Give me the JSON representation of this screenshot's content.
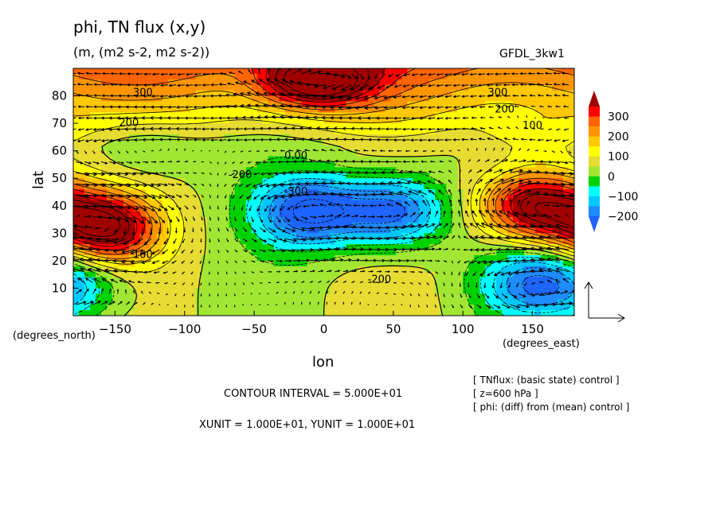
{
  "header": {
    "title": "phi, TN flux (x,y)",
    "subtitle": "(m, (m2 s-2, m2 s-2))",
    "model": "GFDL_3kw1"
  },
  "footer": {
    "contour_interval": "CONTOUR INTERVAL = 5.000E+01",
    "units": "XUNIT = 1.000E+01, YUNIT = 1.000E+01",
    "notes": [
      "[ TNflux: (basic state) control ]",
      "[ z=600 hPa ]",
      "[ phi: (diff) from (mean) control ]"
    ]
  },
  "chart_data": {
    "type": "heatmap",
    "title": "phi, TN flux (x,y)",
    "subtitle": "(m, (m2 s-2, m2 s-2))",
    "xlabel": "lon",
    "xunit_label": "(degrees_east)",
    "ylabel": "lat",
    "yunit_label": "(degrees_north)",
    "xlim": [
      -180,
      180
    ],
    "ylim": [
      0,
      90
    ],
    "xticks": [
      -150,
      -100,
      -50,
      0,
      50,
      100,
      150
    ],
    "yticks": [
      10,
      20,
      30,
      40,
      50,
      60,
      70,
      80
    ],
    "colorbar": {
      "labels": [
        "300",
        "200",
        "100",
        "0",
        "-100",
        "-200"
      ],
      "levels": [
        -250,
        -200,
        -150,
        -100,
        -50,
        0,
        50,
        100,
        150,
        200,
        250,
        300,
        350
      ],
      "colors": [
        "#1e64ff",
        "#1e8cff",
        "#00c8ff",
        "#00ffff",
        "#00d200",
        "#a0e632",
        "#e6dc32",
        "#ffff00",
        "#ffc800",
        "#ff9600",
        "#ff6400",
        "#ff0000",
        "#a00000"
      ]
    },
    "contour_labels": [
      {
        "text": "300",
        "lon": -130,
        "lat": 80
      },
      {
        "text": "200",
        "lon": -140,
        "lat": 69
      },
      {
        "text": "100",
        "lon": -190,
        "lat": 66
      },
      {
        "text": "0.00",
        "lon": -20,
        "lat": 57
      },
      {
        "text": "-200",
        "lon": -60,
        "lat": 50
      },
      {
        "text": "-300",
        "lon": -20,
        "lat": 44
      },
      {
        "text": "100",
        "lon": -130,
        "lat": 21
      },
      {
        "text": "-200",
        "lon": 40,
        "lat": 12
      },
      {
        "text": "300",
        "lon": 125,
        "lat": 80
      },
      {
        "text": "200",
        "lon": 130,
        "lat": 74
      },
      {
        "text": "100",
        "lon": 150,
        "lat": 68
      }
    ],
    "anomaly_centers": [
      {
        "lon": -158,
        "lat": 32,
        "value": 400
      },
      {
        "lon": 150,
        "lat": 40,
        "value": 380
      },
      {
        "lon": -10,
        "lat": 38,
        "value": -300
      },
      {
        "lon": 50,
        "lat": 38,
        "value": -280
      },
      {
        "lon": 150,
        "lat": 12,
        "value": -200
      },
      {
        "lon": -5,
        "lat": 85,
        "value": 350
      },
      {
        "lon": -130,
        "lat": 60,
        "value": -70
      },
      {
        "lon": 150,
        "lat": 65,
        "value": 80
      },
      {
        "lon": -175,
        "lat": 12,
        "value": -120
      }
    ],
    "vectors": {
      "name": "TN flux",
      "xunit": 10,
      "yunit": 10
    }
  }
}
